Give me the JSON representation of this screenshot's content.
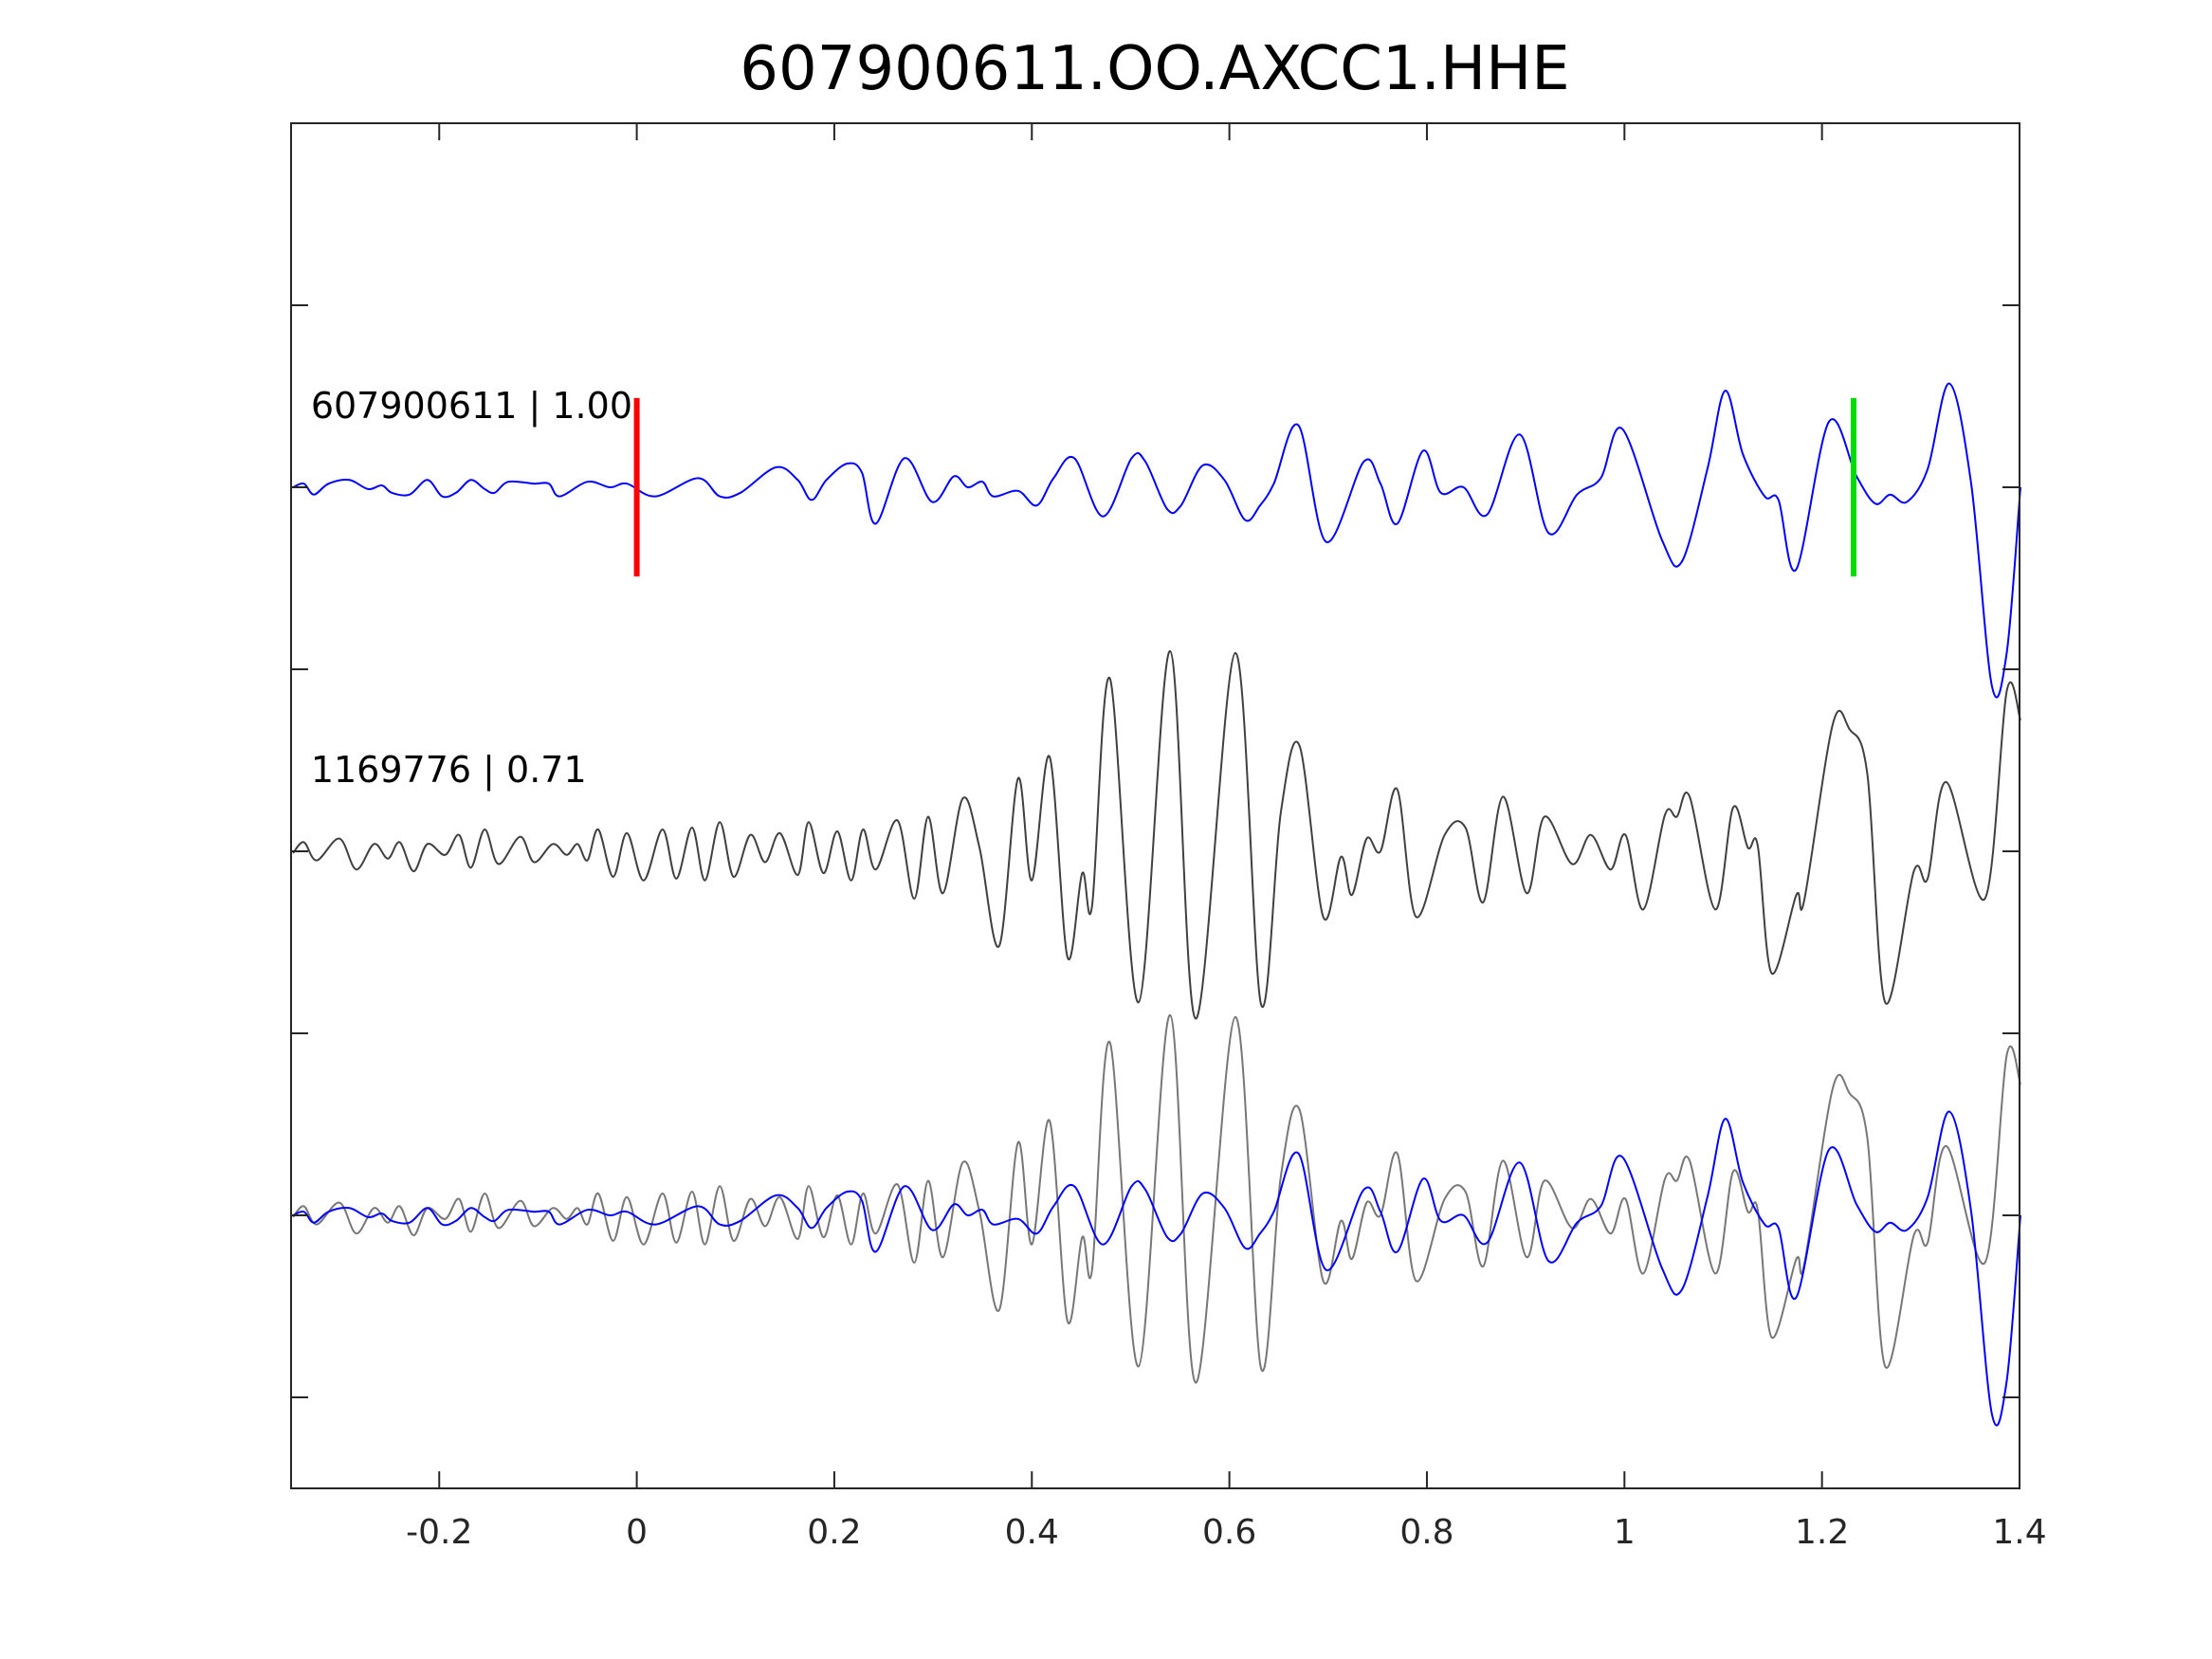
{
  "chart_data": {
    "type": "line",
    "title": "607900611.OO.AXCC1.HHE",
    "xlabel": "",
    "ylabel": "",
    "xlim": [
      -0.35,
      1.4
    ],
    "ylim": [
      -5.5,
      2
    ],
    "xticks": [
      -0.2,
      0,
      0.2,
      0.4,
      0.6,
      0.8,
      1,
      1.2,
      1.4
    ],
    "xtick_labels": [
      "-0.2",
      "0",
      "0.2",
      "0.4",
      "0.6",
      "0.8",
      "1",
      "1.2",
      "1.4"
    ],
    "yticks": [
      -5,
      -4,
      -3,
      -2,
      -1,
      0,
      1
    ],
    "grid": false,
    "colors": {
      "reference": "#0000ff",
      "neighbor": "#404040",
      "neighbor_overlay": "#777777",
      "pick_p": "#ff0000",
      "pick_s": "#00dd00"
    },
    "trace_labels": [
      {
        "text": "607900611 | 1.00",
        "x": -0.33,
        "y": 0.38
      },
      {
        "text": "1169776 | 0.71",
        "x": -0.33,
        "y": -1.62
      }
    ],
    "picks": [
      {
        "name": "P",
        "x": 0.0,
        "y_range": [
          -0.49,
          0.49
        ],
        "color": "#ff0000"
      },
      {
        "name": "S",
        "x": 1.232,
        "y_range": [
          -0.49,
          0.49
        ],
        "color": "#00dd00"
      }
    ],
    "series": [
      {
        "name": "607900611",
        "offset": 0,
        "color": "#0000ff",
        "x": [
          -0.348,
          -0.337,
          -0.327,
          -0.312,
          -0.291,
          -0.272,
          -0.258,
          -0.248,
          -0.23,
          -0.212,
          -0.197,
          -0.183,
          -0.168,
          -0.154,
          -0.144,
          -0.13,
          -0.104,
          -0.089,
          -0.078,
          -0.05,
          -0.027,
          -0.01,
          0.019,
          0.062,
          0.084,
          0.105,
          0.141,
          0.163,
          0.177,
          0.192,
          0.213,
          0.228,
          0.242,
          0.271,
          0.299,
          0.321,
          0.335,
          0.35,
          0.361,
          0.386,
          0.405,
          0.422,
          0.443,
          0.472,
          0.501,
          0.515,
          0.537,
          0.551,
          0.573,
          0.595,
          0.616,
          0.631,
          0.645,
          0.67,
          0.698,
          0.736,
          0.753,
          0.77,
          0.796,
          0.814,
          0.837,
          0.861,
          0.894,
          0.923,
          0.952,
          0.976,
          0.998,
          1.038,
          1.058,
          1.084,
          1.102,
          1.12,
          1.142,
          1.156,
          1.174,
          1.207,
          1.235,
          1.254,
          1.269,
          1.286,
          1.307,
          1.329,
          1.351,
          1.372,
          1.387,
          1.401
        ],
        "y": [
          0,
          0.02,
          -0.04,
          0.02,
          0.04,
          -0.01,
          0.01,
          -0.03,
          -0.04,
          0.04,
          -0.05,
          -0.03,
          0.04,
          -0.01,
          -0.03,
          0.03,
          0.02,
          0.02,
          -0.05,
          0.03,
          0,
          0.02,
          -0.05,
          0.05,
          -0.05,
          -0.03,
          0.11,
          0.04,
          -0.07,
          0.04,
          0.13,
          0.08,
          -0.2,
          0.16,
          -0.08,
          0.06,
          0,
          0.03,
          -0.05,
          -0.02,
          -0.1,
          0.05,
          0.16,
          -0.16,
          0.16,
          0.14,
          -0.12,
          -0.1,
          0.12,
          0.04,
          -0.18,
          -0.1,
          0.02,
          0.34,
          -0.3,
          0.14,
          0.02,
          -0.2,
          0.2,
          -0.03,
          0,
          -0.15,
          0.29,
          -0.25,
          -0.04,
          0.05,
          0.32,
          -0.29,
          -0.41,
          0.1,
          0.53,
          0.18,
          -0.05,
          -0.07,
          -0.45,
          0.36,
          0.06,
          -0.09,
          -0.04,
          -0.08,
          0.1,
          0.57,
          0.02,
          -1.09,
          -0.91,
          0
        ]
      },
      {
        "name": "1169776",
        "offset": -2,
        "color": "#404040",
        "x": [
          -0.348,
          -0.337,
          -0.324,
          -0.301,
          -0.284,
          -0.266,
          -0.252,
          -0.24,
          -0.226,
          -0.212,
          -0.194,
          -0.18,
          -0.168,
          -0.154,
          -0.14,
          -0.118,
          -0.104,
          -0.085,
          -0.071,
          -0.06,
          -0.05,
          -0.039,
          -0.024,
          -0.01,
          0.007,
          0.026,
          0.04,
          0.056,
          0.069,
          0.084,
          0.098,
          0.115,
          0.13,
          0.145,
          0.163,
          0.174,
          0.189,
          0.203,
          0.217,
          0.229,
          0.242,
          0.264,
          0.281,
          0.295,
          0.31,
          0.33,
          0.347,
          0.367,
          0.386,
          0.4,
          0.418,
          0.436,
          0.451,
          0.461,
          0.479,
          0.508,
          0.54,
          0.566,
          0.606,
          0.632,
          0.652,
          0.671,
          0.695,
          0.713,
          0.724,
          0.739,
          0.753,
          0.77,
          0.789,
          0.818,
          0.839,
          0.857,
          0.877,
          0.901,
          0.919,
          0.947,
          0.966,
          0.986,
          1.001,
          1.019,
          1.041,
          1.053,
          1.066,
          1.092,
          1.11,
          1.125,
          1.135,
          1.149,
          1.174,
          1.182,
          1.211,
          1.228,
          1.246,
          1.264,
          1.293,
          1.307,
          1.326,
          1.365,
          1.387,
          1.401
        ],
        "y": [
          -0.01,
          0.05,
          -0.05,
          0.07,
          -0.1,
          0.04,
          -0.04,
          0.05,
          -0.11,
          0.04,
          -0.02,
          0.09,
          -0.09,
          0.12,
          -0.07,
          0.08,
          -0.06,
          0.04,
          -0.02,
          0.04,
          -0.05,
          0.12,
          -0.14,
          0.1,
          -0.16,
          0.12,
          -0.15,
          0.13,
          -0.16,
          0.16,
          -0.14,
          0.09,
          -0.06,
          0.1,
          -0.13,
          0.16,
          -0.12,
          0.11,
          -0.16,
          0.12,
          -0.1,
          0.17,
          -0.26,
          0.19,
          -0.23,
          0.29,
          0.02,
          -0.52,
          0.4,
          -0.16,
          0.52,
          -0.58,
          -0.12,
          -0.3,
          0.95,
          -0.83,
          1.1,
          -0.92,
          1.09,
          -0.84,
          0.21,
          0.58,
          -0.36,
          -0.03,
          -0.24,
          0.07,
          0,
          0.34,
          -0.36,
          0.09,
          0.13,
          -0.28,
          0.3,
          -0.23,
          0.19,
          -0.07,
          0.09,
          -0.1,
          0.09,
          -0.32,
          0.2,
          0.19,
          0.3,
          -0.32,
          0.24,
          0.02,
          0.03,
          -0.67,
          -0.24,
          -0.27,
          0.7,
          0.67,
          0.42,
          -0.83,
          -0.11,
          -0.15,
          0.38,
          -0.26,
          0.88,
          0.72
        ]
      }
    ],
    "overlay": {
      "offset": -4,
      "series": [
        "1169776",
        "607900611"
      ]
    }
  }
}
